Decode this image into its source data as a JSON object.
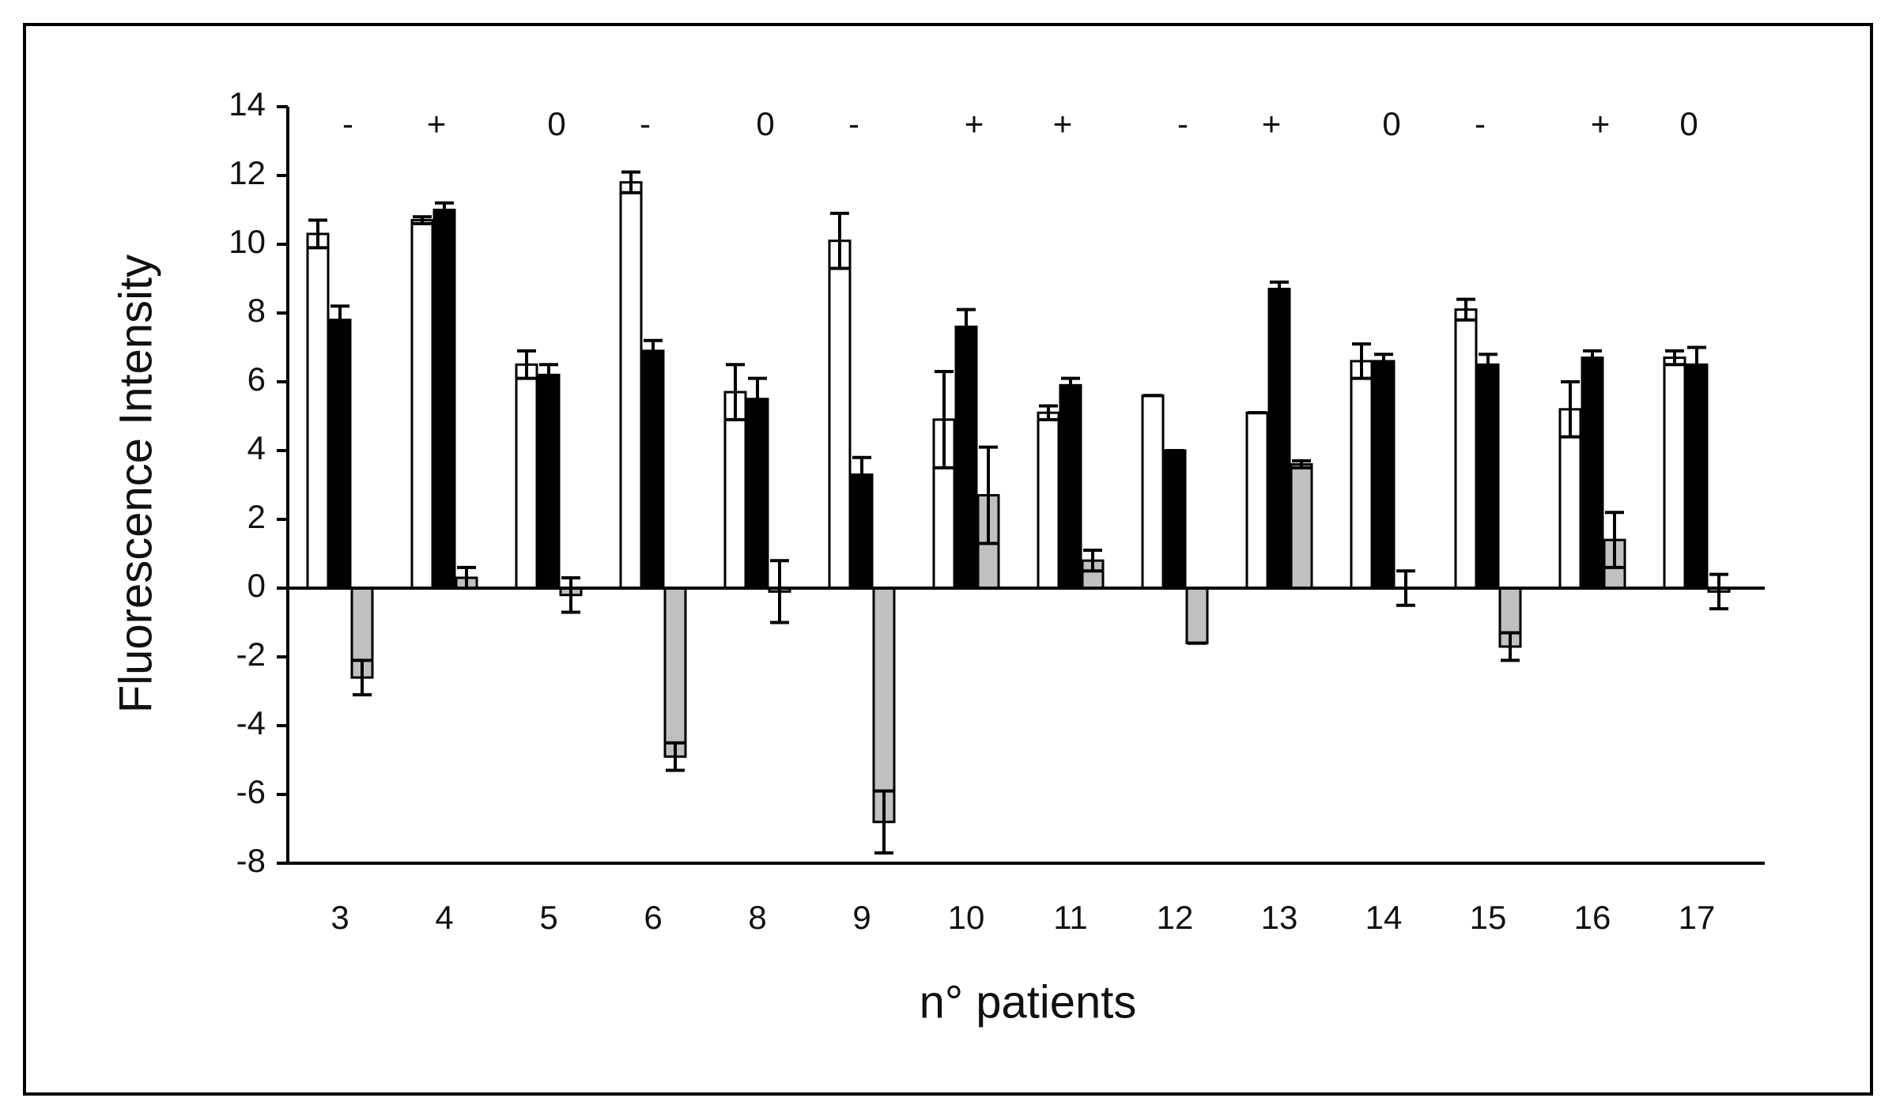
{
  "chart_data": {
    "type": "bar",
    "xlabel": "n° patients",
    "ylabel": "Fluorescence Intensity",
    "categories": [
      "3",
      "4",
      "5",
      "6",
      "8",
      "9",
      "10",
      "11",
      "12",
      "13",
      "14",
      "15",
      "16",
      "17"
    ],
    "annotations": [
      "-",
      "+",
      "0",
      "-",
      "0",
      "-",
      "+",
      "+",
      "-",
      "+",
      "0",
      "-",
      "+",
      "0"
    ],
    "series": [
      {
        "color": "#ffffff",
        "values": [
          10.3,
          10.7,
          6.5,
          11.8,
          5.7,
          10.1,
          4.9,
          5.1,
          5.6,
          5.1,
          6.6,
          8.1,
          5.2,
          6.7
        ],
        "errors": [
          0.4,
          0.1,
          0.4,
          0.3,
          0.8,
          0.8,
          1.4,
          0.2,
          0,
          0,
          0.5,
          0.3,
          0.8,
          0.2
        ]
      },
      {
        "color": "#000000",
        "values": [
          7.8,
          11.0,
          6.2,
          6.9,
          5.5,
          3.3,
          7.6,
          5.9,
          4.0,
          8.7,
          6.6,
          6.5,
          6.7,
          6.5
        ],
        "errors": [
          0.4,
          0.2,
          0.3,
          0.3,
          0.6,
          0.5,
          0.5,
          0.2,
          0,
          0.2,
          0.2,
          0.3,
          0.2,
          0.5
        ]
      },
      {
        "color": "#c0c0c0",
        "values": [
          -2.6,
          0.3,
          -0.2,
          -4.9,
          -0.1,
          -6.8,
          2.7,
          0.8,
          -1.6,
          3.6,
          0.0,
          -1.7,
          1.4,
          -0.1
        ],
        "errors": [
          0.5,
          0.3,
          0.5,
          0.4,
          0.9,
          0.9,
          1.4,
          0.3,
          0,
          0.1,
          0.5,
          0.4,
          0.8,
          0.5
        ]
      }
    ],
    "ylim": [
      -8,
      14
    ],
    "yticks": [
      -8,
      -6,
      -4,
      -2,
      0,
      2,
      4,
      6,
      8,
      10,
      12,
      14
    ]
  }
}
